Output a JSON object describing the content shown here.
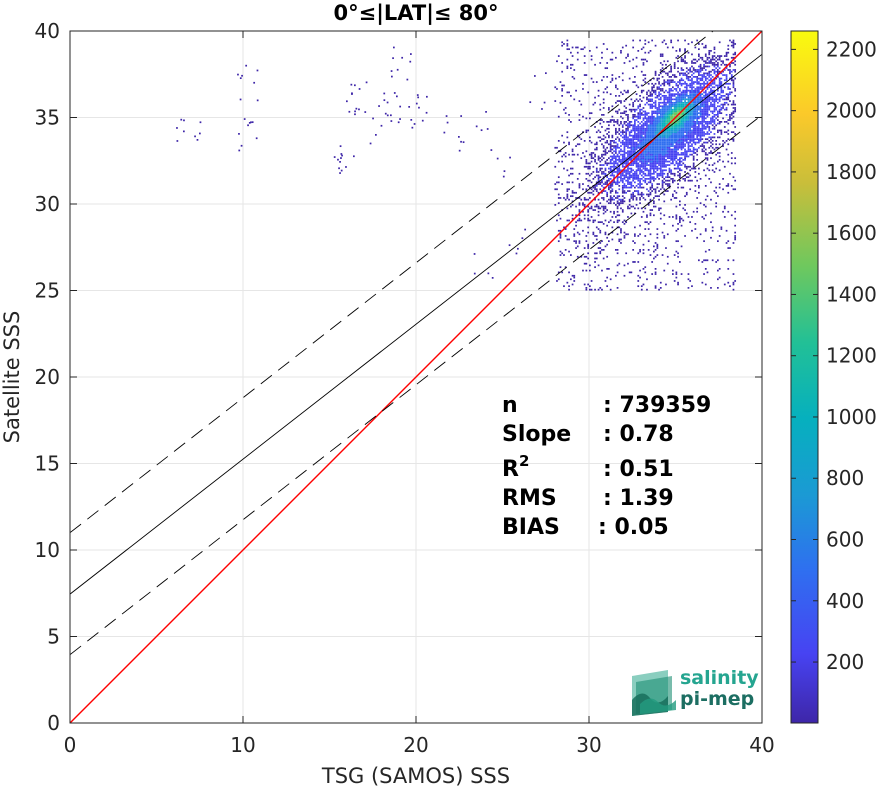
{
  "chart_data": {
    "type": "heatmap",
    "title": "0°≤|LAT|≤ 80°",
    "xlabel": "TSG (SAMOS) SSS",
    "ylabel": "Satellite SSS",
    "xlim": [
      0,
      40
    ],
    "ylim": [
      0,
      40
    ],
    "x_ticks": [
      "0",
      "10",
      "20",
      "30",
      "40"
    ],
    "y_ticks": [
      "0",
      "5",
      "10",
      "15",
      "20",
      "25",
      "30",
      "35",
      "40"
    ],
    "grid": true,
    "colorbar": {
      "range": [
        1,
        2260
      ],
      "ticks": [
        "200",
        "400",
        "600",
        "800",
        "1000",
        "1200",
        "1400",
        "1600",
        "1800",
        "2000",
        "2200"
      ],
      "colormap": "parula",
      "colors": [
        "#3e26a8",
        "#4743f2",
        "#2f6ff0",
        "#1b9ad4",
        "#06b0be",
        "#22c096",
        "#6ec85e",
        "#c9be3a",
        "#fbc92a",
        "#f9fb0e"
      ]
    },
    "lines": [
      {
        "name": "1:1",
        "color": "#ff0000",
        "style": "solid",
        "intercept": 0,
        "slope": 1
      },
      {
        "name": "fit",
        "color": "#000000",
        "style": "solid",
        "intercept": 7.45,
        "slope": 0.78
      },
      {
        "name": "fit_upper",
        "color": "#000000",
        "style": "dashed",
        "intercept": 11.0,
        "slope": 0.78
      },
      {
        "name": "fit_lower",
        "color": "#000000",
        "style": "dashed",
        "intercept": 3.95,
        "slope": 0.78
      }
    ],
    "density": {
      "main_cluster": {
        "x_center": 34.5,
        "y_center": 34.2,
        "x_range": [
          28,
          38.5
        ],
        "y_range": [
          25,
          39.5
        ],
        "peak_count": 2260,
        "peak_at": [
          35.0,
          35.0
        ]
      },
      "outliers": [
        {
          "x": 16.5,
          "y": 36.0
        },
        {
          "x": 18.5,
          "y": 35.5
        },
        {
          "x": 15.7,
          "y": 32.8
        },
        {
          "x": 10.2,
          "y": 37.0
        },
        {
          "x": 10.4,
          "y": 34.0
        },
        {
          "x": 6.8,
          "y": 33.8
        },
        {
          "x": 18.0,
          "y": 34.0
        },
        {
          "x": 23.5,
          "y": 35.0
        },
        {
          "x": 25.0,
          "y": 32.0
        },
        {
          "x": 24.0,
          "y": 26.5
        },
        {
          "x": 20.0,
          "y": 35.3
        },
        {
          "x": 22.0,
          "y": 34.0
        },
        {
          "x": 27.0,
          "y": 36.5
        },
        {
          "x": 26.0,
          "y": 28.0
        },
        {
          "x": 19.0,
          "y": 38.0
        }
      ]
    },
    "stats": {
      "labels": [
        "n",
        "Slope",
        "R",
        "RMS",
        "BIAS"
      ],
      "values": [
        ": 739359",
        ": 0.78",
        ": 0.51",
        ": 1.39",
        ": 0.05"
      ],
      "r_superscript": "2"
    }
  },
  "logo": {
    "line1": "salinity",
    "line2": "pi-mep"
  }
}
